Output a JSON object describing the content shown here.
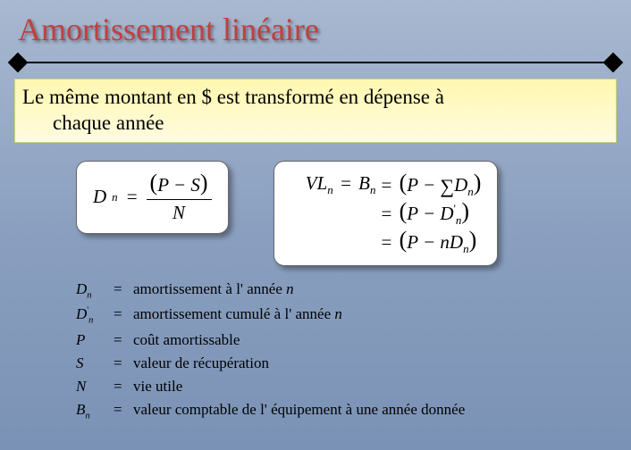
{
  "colors": {
    "title": "#c04040",
    "bg_top": "#a8b8d0",
    "bg_bottom": "#7a92b5",
    "subtitle_bg_top": "#fff8b0",
    "subtitle_bg_bottom": "#fffbe0",
    "formula_bg": "#ffffff",
    "text": "#000000"
  },
  "typography": {
    "title_fontsize": 36,
    "subtitle_fontsize": 23,
    "formula_fontsize": 21,
    "defs_fontsize": 17,
    "family": "Times New Roman"
  },
  "title": "Amortissement linéaire",
  "subtitle_line1": "Le même montant en $ est transformé en dépense à",
  "subtitle_line2": "chaque année",
  "formula_left": {
    "lhs_var": "D",
    "lhs_sub": "n",
    "eq": "=",
    "num_lp": "(",
    "num_expr": "P − S",
    "num_rp": ")",
    "den": "N"
  },
  "formula_right": {
    "line1": {
      "lhs1_var": "VL",
      "lhs1_sub": "n",
      "eq1": "=",
      "lhs2_var": "B",
      "lhs2_sub": "n",
      "eq2": "=",
      "lp": "(",
      "P": "P",
      "minus": " − ",
      "sigma": "∑",
      "D": "D",
      "Dsub": "n",
      "rp": ")"
    },
    "line2": {
      "eq": "=",
      "lp": "(",
      "P": "P",
      "minus": " − ",
      "D": "D",
      "Dsup": "'",
      "Dsub": "n",
      "rp": ")"
    },
    "line3": {
      "eq": "=",
      "lp": "(",
      "P": "P",
      "minus": " − ",
      "n": "n",
      "D": "D",
      "Dsub": "n",
      "rp": ")"
    }
  },
  "defs": [
    {
      "sym": "D",
      "sub": "n",
      "sup": "",
      "desc_pre": "amortissement à l' année  ",
      "desc_ital": "n"
    },
    {
      "sym": "D",
      "sub": "n",
      "sup": "'",
      "desc_pre": "amortissement cumulé à l' année  ",
      "desc_ital": "n"
    },
    {
      "sym": "P",
      "sub": "",
      "sup": "",
      "desc_pre": "coût amortissable",
      "desc_ital": ""
    },
    {
      "sym": "S",
      "sub": "",
      "sup": "",
      "desc_pre": "valeur de récupération",
      "desc_ital": ""
    },
    {
      "sym": "N",
      "sub": "",
      "sup": "",
      "desc_pre": "vie utile",
      "desc_ital": ""
    },
    {
      "sym": "B",
      "sub": "n",
      "sup": "",
      "desc_pre": "valeur comptable de l' équipement à une année donnée",
      "desc_ital": ""
    }
  ],
  "eq_sign": "="
}
